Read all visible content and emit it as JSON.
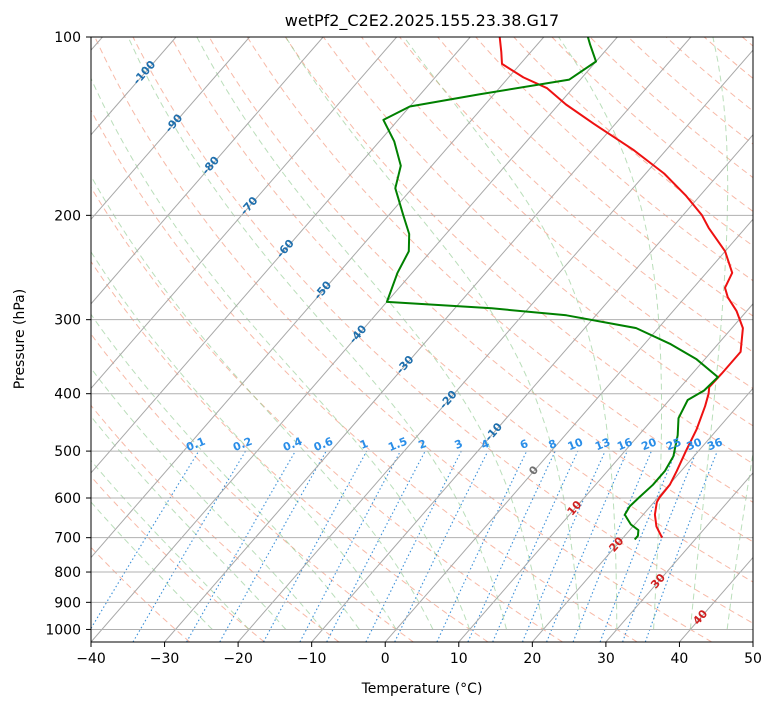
{
  "chart_data": {
    "type": "line",
    "title": "wetPf2_C2E2.2025.155.23.38.G17",
    "xlabel": "Temperature (°C)",
    "ylabel": "Pressure (hPa)",
    "xlim": [
      -40,
      50
    ],
    "ylim": [
      1050,
      100
    ],
    "yscale": "log",
    "x_ticks": [
      -40,
      -30,
      -20,
      -10,
      0,
      10,
      20,
      30,
      40,
      50
    ],
    "y_ticks": [
      100,
      200,
      300,
      400,
      500,
      600,
      700,
      800,
      900,
      1000
    ],
    "grid": true,
    "skew": true,
    "isotherm_labels": [
      "-100",
      "-90",
      "-80",
      "-70",
      "-60",
      "-50",
      "-40",
      "-30",
      "-20",
      "-10",
      "0",
      "10",
      "20",
      "30",
      "40"
    ],
    "mixing_ratio_labels": [
      "0.1",
      "0.2",
      "0.4",
      "0.6",
      "1",
      "1.5",
      "2",
      "3",
      "4",
      "6",
      "8",
      "10",
      "13",
      "16",
      "20",
      "25",
      "30",
      "36"
    ],
    "series": [
      {
        "color": "#ee1111",
        "points": [
          [
            700,
            25.3
          ],
          [
            690,
            24.6
          ],
          [
            670,
            23.2
          ],
          [
            640,
            21.6
          ],
          [
            610,
            20.4
          ],
          [
            600,
            20.2
          ],
          [
            570,
            20.1
          ],
          [
            540,
            19.4
          ],
          [
            500,
            18.3
          ],
          [
            460,
            17.2
          ],
          [
            420,
            15.6
          ],
          [
            400,
            14.6
          ],
          [
            390,
            13.9
          ],
          [
            370,
            14.0
          ],
          [
            340,
            14.0
          ],
          [
            310,
            11.5
          ],
          [
            290,
            8.6
          ],
          [
            275,
            5.8
          ],
          [
            265,
            4.3
          ],
          [
            250,
            3.5
          ],
          [
            230,
            0.0
          ],
          [
            210,
            -5.0
          ],
          [
            200,
            -7.4
          ],
          [
            185,
            -12.0
          ],
          [
            170,
            -17.5
          ],
          [
            155,
            -24.5
          ],
          [
            140,
            -33.0
          ],
          [
            130,
            -39.0
          ],
          [
            122,
            -43.5
          ],
          [
            117,
            -48.0
          ],
          [
            111,
            -52.5
          ],
          [
            106,
            -54.0
          ],
          [
            100,
            -56.0
          ]
        ]
      },
      {
        "color": "#008000",
        "points": [
          [
            705,
            21.8
          ],
          [
            695,
            21.8
          ],
          [
            680,
            21.2
          ],
          [
            665,
            19.5
          ],
          [
            650,
            18.3
          ],
          [
            640,
            17.5
          ],
          [
            620,
            17.2
          ],
          [
            600,
            17.4
          ],
          [
            570,
            17.8
          ],
          [
            540,
            17.8
          ],
          [
            510,
            17.2
          ],
          [
            470,
            15.3
          ],
          [
            440,
            13.4
          ],
          [
            410,
            12.5
          ],
          [
            395,
            13.6
          ],
          [
            375,
            13.9
          ],
          [
            350,
            8.9
          ],
          [
            330,
            3.6
          ],
          [
            310,
            -3.0
          ],
          [
            295,
            -14.0
          ],
          [
            287,
            -25.0
          ],
          [
            280,
            -40.0
          ],
          [
            250,
            -42.0
          ],
          [
            230,
            -43.0
          ],
          [
            215,
            -45.0
          ],
          [
            200,
            -48.0
          ],
          [
            180,
            -52.3
          ],
          [
            165,
            -54.2
          ],
          [
            150,
            -58.0
          ],
          [
            138,
            -62.0
          ],
          [
            131,
            -60.0
          ],
          [
            125,
            -52.0
          ],
          [
            118,
            -41.5
          ],
          [
            110,
            -40.0
          ],
          [
            103,
            -42.8
          ],
          [
            100,
            -44.0
          ]
        ]
      }
    ]
  }
}
